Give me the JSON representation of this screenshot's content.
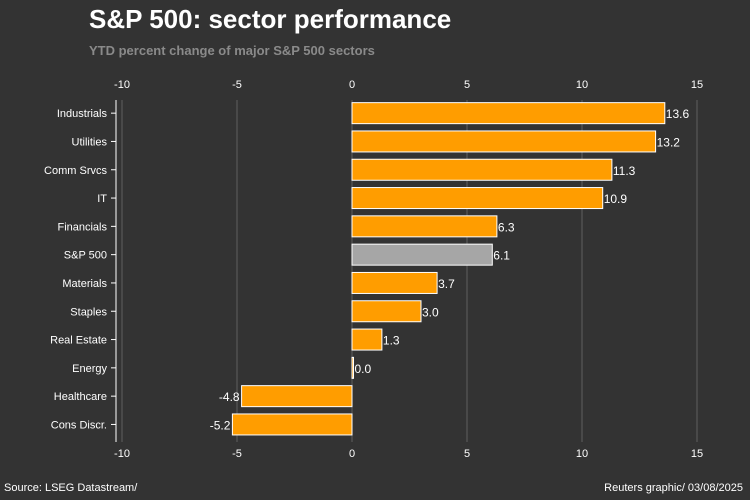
{
  "colors": {
    "background": "#333333",
    "bar": "#ff9d00",
    "highlight": "#a6a6a6",
    "grid": "#5f5f5f",
    "text": "#ffffff",
    "subtitle": "#8a8a8a"
  },
  "source": "Source: LSEG Datastream/",
  "credit": "Reuters graphic/ 03/08/2025",
  "chart_data": {
    "type": "bar",
    "orientation": "horizontal",
    "title": "S&P 500: sector performance",
    "subtitle": "YTD percent change of major S&P 500 sectors",
    "xlabel": "",
    "ylabel": "",
    "xlim": [
      -10,
      15
    ],
    "xticks": [
      -10,
      -5,
      0,
      5,
      10,
      15
    ],
    "grid": true,
    "highlight_category": "S&P 500",
    "categories": [
      "Industrials",
      "Utilities",
      "Comm Srvcs",
      "IT",
      "Financials",
      "S&P 500",
      "Materials",
      "Staples",
      "Real Estate",
      "Energy",
      "Healthcare",
      "Cons Discr."
    ],
    "values": [
      13.6,
      13.2,
      11.3,
      10.9,
      6.3,
      6.1,
      3.7,
      3.0,
      1.3,
      0.0,
      -4.8,
      -5.2
    ],
    "labels": [
      "13.6",
      "13.2",
      "11.3",
      "10.9",
      "6.3",
      "6.1",
      "3.7",
      "3.0",
      "1.3",
      "0.0",
      "-4.8",
      "-5.2"
    ]
  }
}
